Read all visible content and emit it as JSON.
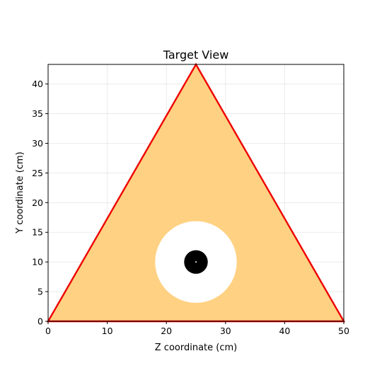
{
  "chart_data": {
    "type": "diagram",
    "title": "Target View",
    "xlabel": "Z coordinate (cm)",
    "ylabel": "Y coordinate (cm)",
    "xlim": [
      0,
      50
    ],
    "ylim": [
      0,
      43.3
    ],
    "x_ticks": [
      0,
      10,
      20,
      30,
      40,
      50
    ],
    "y_ticks": [
      0,
      5,
      10,
      15,
      20,
      25,
      30,
      35,
      40
    ],
    "grid": true,
    "triangle": {
      "vertices": [
        [
          0,
          0
        ],
        [
          25,
          43.3
        ],
        [
          50,
          0
        ]
      ],
      "fill_color": "#ffd182",
      "edge_color": "#ee0000"
    },
    "hole": {
      "center": [
        25,
        10
      ],
      "radius": 6.9,
      "color": "#ffffff"
    },
    "spot": {
      "center": [
        25,
        10
      ],
      "radius": 2.0,
      "color": "#000000"
    },
    "center_marker": {
      "center": [
        25,
        10
      ],
      "color": "#ffffff"
    }
  }
}
